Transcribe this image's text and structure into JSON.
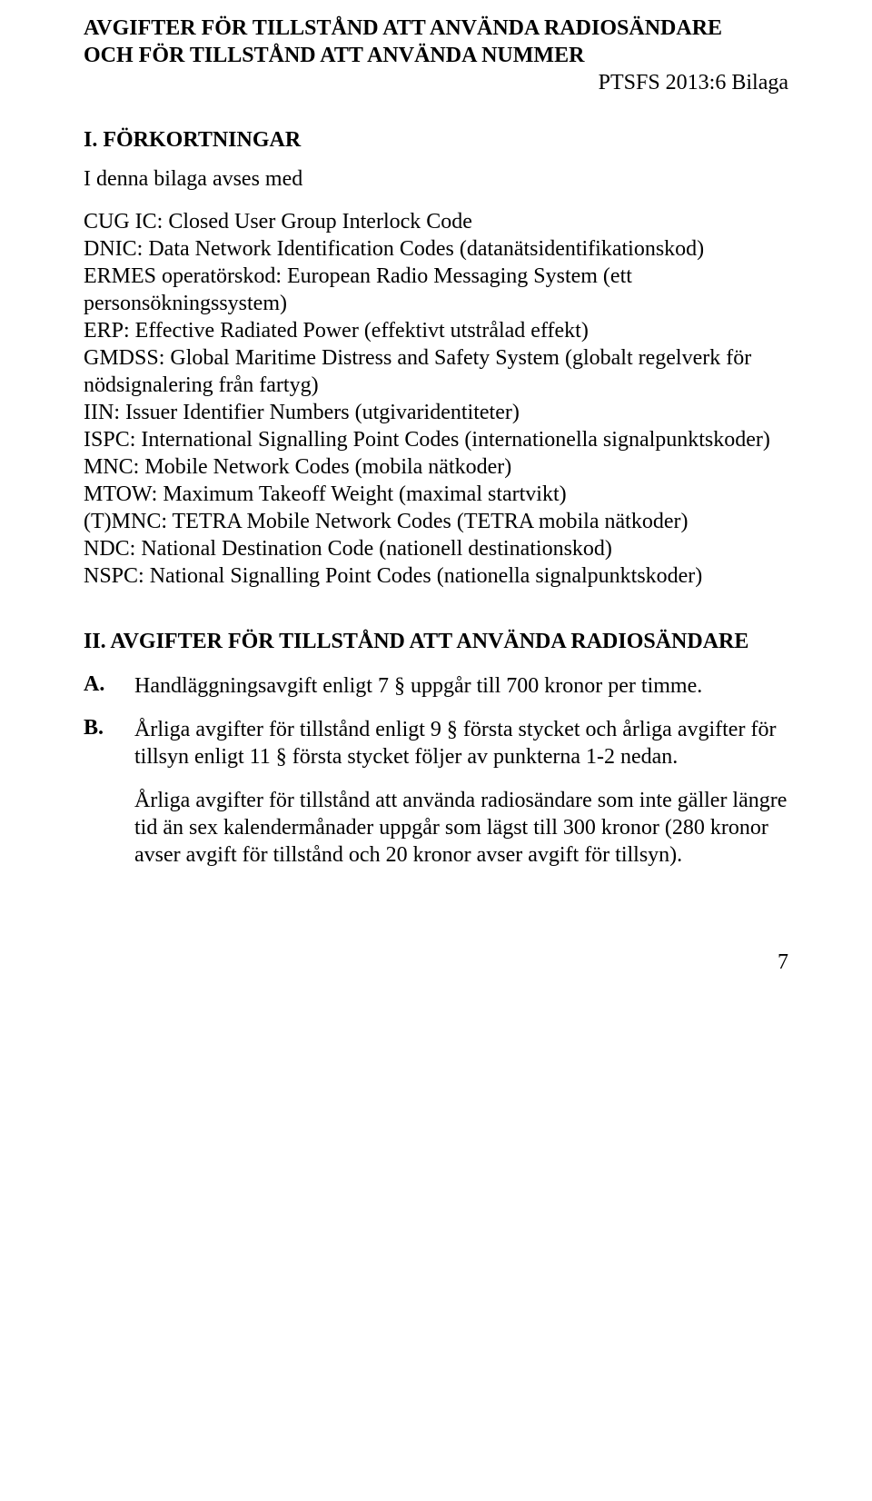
{
  "header": {
    "title_line1": "AVGIFTER FÖR TILLSTÅND ATT ANVÄNDA RADIOSÄNDARE",
    "title_line2": "OCH FÖR TILLSTÅND ATT ANVÄNDA NUMMER",
    "sub_reference": "PTSFS 2013:6 Bilaga"
  },
  "section1": {
    "heading": "I. FÖRKORTNINGAR",
    "intro": "I denna bilaga avses med",
    "definitions": [
      "CUG IC: Closed User Group Interlock Code",
      "DNIC: Data Network Identification Codes (datanätsidentifikationskod)",
      "ERMES operatörskod: European Radio Messaging System (ett personsökningssystem)",
      "ERP: Effective Radiated Power (effektivt utstrålad effekt)",
      "GMDSS: Global Maritime Distress and Safety System (globalt regelverk för nödsignalering från fartyg)",
      "IIN: Issuer Identifier Numbers (utgivaridentiteter)",
      "ISPC: International Signalling Point Codes (internationella signalpunktskoder)",
      "MNC: Mobile Network Codes (mobila nätkoder)",
      "MTOW: Maximum Takeoff Weight (maximal startvikt)",
      " (T)MNC: TETRA Mobile Network Codes (TETRA mobila nätkoder)",
      "NDC: National Destination Code (nationell destinationskod)",
      "NSPC: National Signalling Point Codes (nationella signalpunktskoder)"
    ]
  },
  "section2": {
    "heading": "II. AVGIFTER FÖR TILLSTÅND ATT ANVÄNDA RADIOSÄNDARE",
    "items": [
      {
        "marker": "A.",
        "text": "Handläggningsavgift enligt 7 § uppgår till 700 kronor per timme."
      },
      {
        "marker": "B.",
        "text": "Årliga avgifter för tillstånd enligt 9 § första stycket och årliga avgifter för tillsyn enligt 11 § första stycket följer av punkterna 1-2 nedan.",
        "para2": "Årliga avgifter för tillstånd att använda radiosändare som inte gäller längre tid än sex kalendermånader uppgår som lägst till 300 kronor (280 kronor avser avgift för tillstånd och 20 kronor avser avgift för tillsyn)."
      }
    ]
  },
  "page_number": "7"
}
